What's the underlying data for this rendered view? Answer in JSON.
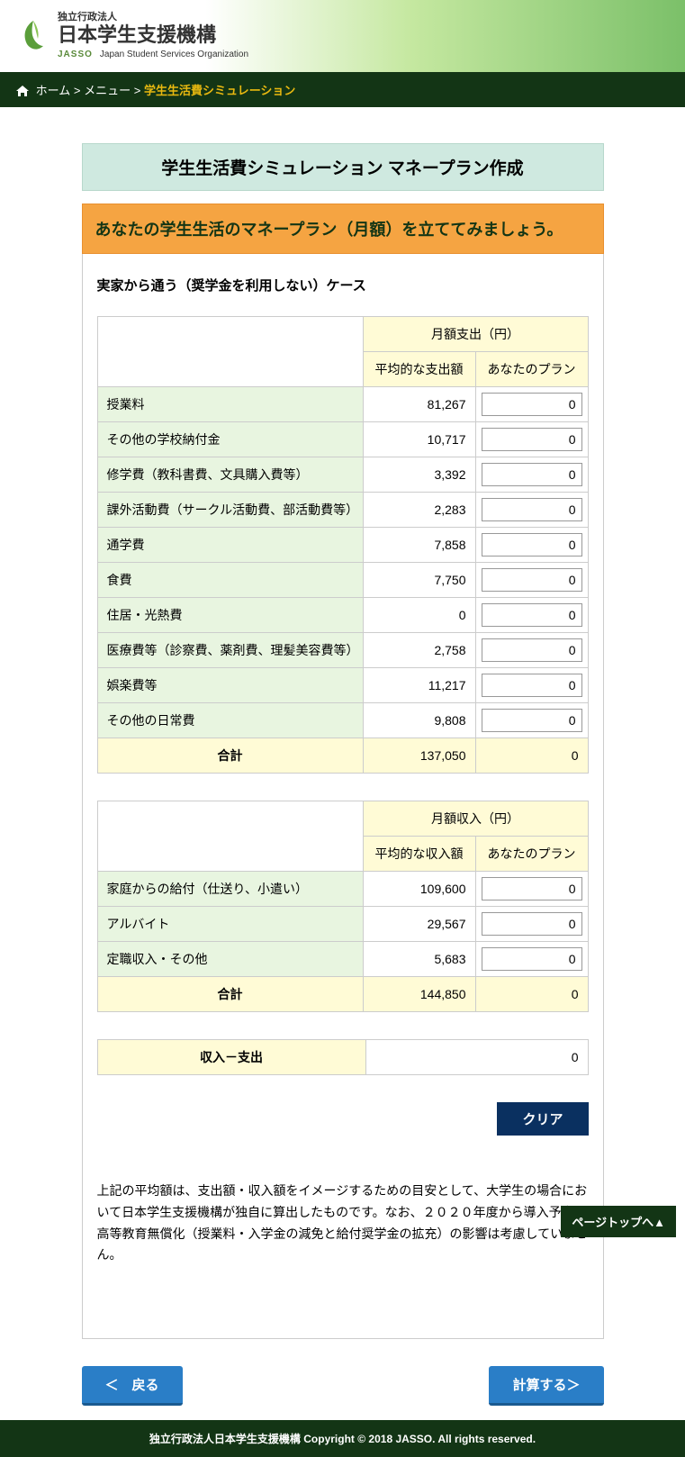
{
  "org": {
    "small": "独立行政法人",
    "name_ja": "日本学生支援機構",
    "name_en": "Japan Student Services Organization",
    "tag": "JASSO"
  },
  "breadcrumb": {
    "home": "ホーム",
    "menu": "メニュー",
    "current": "学生生活費シミュレーション",
    "sep": " > "
  },
  "title": "学生生活費シミュレーション マネープラン作成",
  "subtitle": "あなたの学生生活のマネープラン（月額）を立ててみましょう。",
  "case_label": "実家から通う（奨学金を利用しない）ケース",
  "expense": {
    "header_span": "月額支出（円）",
    "header_avg": "平均的な支出額",
    "header_plan": "あなたのプラン",
    "rows": [
      {
        "label": "授業料",
        "avg": "81,267",
        "plan": "0"
      },
      {
        "label": "その他の学校納付金",
        "avg": "10,717",
        "plan": "0"
      },
      {
        "label": "修学費（教科書費、文具購入費等）",
        "avg": "3,392",
        "plan": "0"
      },
      {
        "label": "課外活動費（サークル活動費、部活動費等）",
        "avg": "2,283",
        "plan": "0"
      },
      {
        "label": "通学費",
        "avg": "7,858",
        "plan": "0"
      },
      {
        "label": "食費",
        "avg": "7,750",
        "plan": "0"
      },
      {
        "label": "住居・光熱費",
        "avg": "0",
        "plan": "0"
      },
      {
        "label": "医療費等（診察費、薬剤費、理髪美容費等）",
        "avg": "2,758",
        "plan": "0"
      },
      {
        "label": "娯楽費等",
        "avg": "11,217",
        "plan": "0"
      },
      {
        "label": "その他の日常費",
        "avg": "9,808",
        "plan": "0"
      }
    ],
    "total_label": "合計",
    "total_avg": "137,050",
    "total_plan": "0"
  },
  "income": {
    "header_span": "月額収入（円）",
    "header_avg": "平均的な収入額",
    "header_plan": "あなたのプラン",
    "rows": [
      {
        "label": "家庭からの給付（仕送り、小遣い）",
        "avg": "109,600",
        "plan": "0"
      },
      {
        "label": "アルバイト",
        "avg": "29,567",
        "plan": "0"
      },
      {
        "label": "定職収入・その他",
        "avg": "5,683",
        "plan": "0"
      }
    ],
    "total_label": "合計",
    "total_avg": "144,850",
    "total_plan": "0"
  },
  "balance": {
    "label": "収入－支出",
    "value": "0"
  },
  "buttons": {
    "clear": "クリア",
    "back": "＜　戻る",
    "calc": "計算する＞"
  },
  "note": "上記の平均額は、支出額・収入額をイメージするための目安として、大学生の場合において日本学生支援機構が独自に算出したものです。なお、２０２０年度から導入予定の高等教育無償化（授業料・入学金の減免と給付奨学金の拡充）の影響は考慮していません。",
  "page_top": "ページトップへ▲",
  "footer": "独立行政法人日本学生支援機構 Copyright © 2018 JASSO. All rights reserved."
}
